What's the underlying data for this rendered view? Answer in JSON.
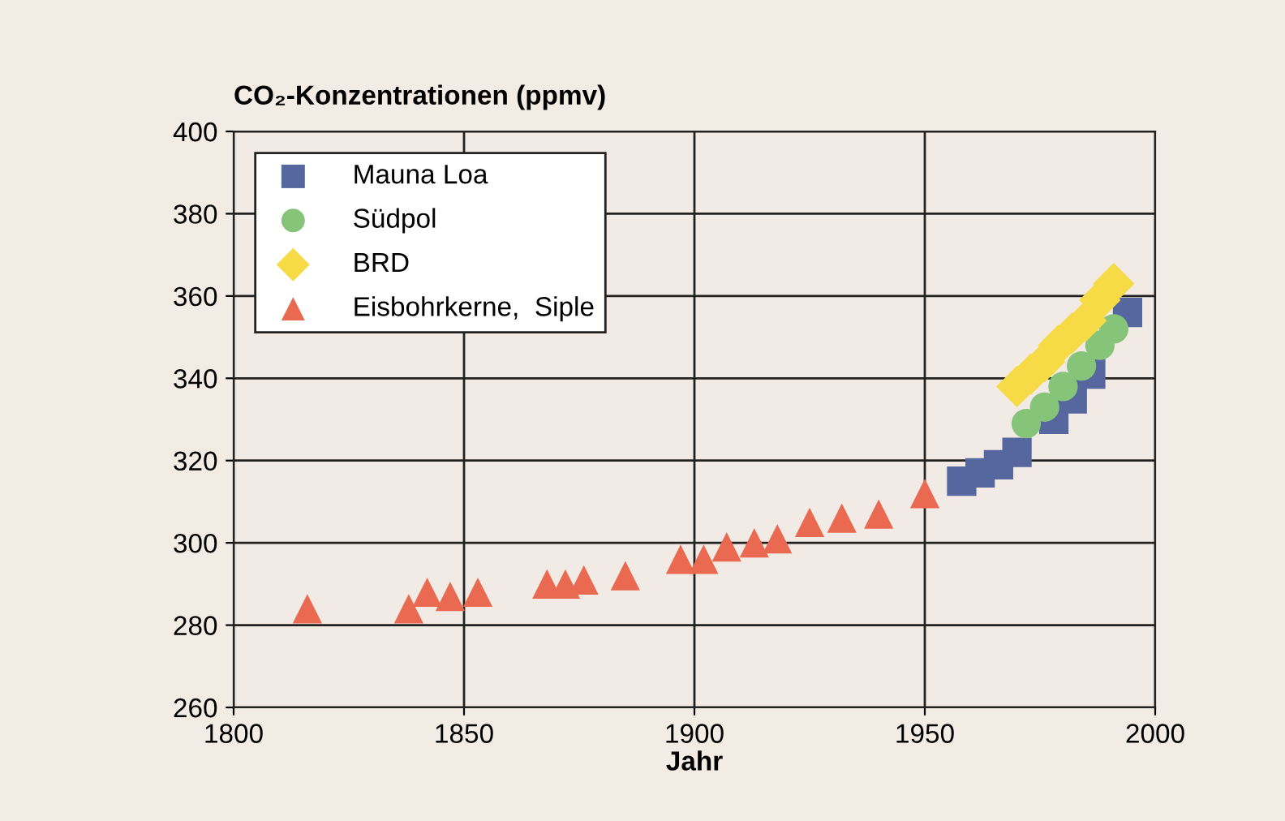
{
  "chart_data": {
    "type": "scatter",
    "title": "CO₂-Konzentrationen (ppmv)",
    "xlabel": "Jahr",
    "xlim": [
      1800,
      2000
    ],
    "xticks": [
      1800,
      1850,
      1900,
      1950,
      2000
    ],
    "ylim": [
      260,
      400
    ],
    "yticks": [
      260,
      280,
      300,
      320,
      340,
      360,
      380,
      400
    ],
    "grid": true,
    "legend": "top left",
    "series": [
      {
        "name": "Mauna Loa",
        "color": "#56679f",
        "marker": "square",
        "x": [
          1958,
          1962,
          1966,
          1970,
          1978,
          1982,
          1986,
          1994
        ],
        "values": [
          315,
          317,
          319,
          322,
          330,
          335,
          341,
          356
        ]
      },
      {
        "name": "Südpol",
        "color": "#86c47a",
        "marker": "circle",
        "x": [
          1972,
          1976,
          1980,
          1984,
          1988,
          1991
        ],
        "values": [
          329,
          333,
          338,
          343,
          348,
          352
        ]
      },
      {
        "name": "BRD",
        "color": "#f6db47",
        "marker": "diamond",
        "x": [
          1970,
          1973,
          1976,
          1979,
          1982,
          1985,
          1988,
          1991
        ],
        "values": [
          338,
          341,
          344,
          348,
          351,
          354,
          359,
          363
        ]
      },
      {
        "name": "Eisbohrkerne,  Siple",
        "color": "#e96a50",
        "marker": "triangle",
        "x": [
          1816,
          1838,
          1842,
          1847,
          1853,
          1868,
          1872,
          1876,
          1885,
          1897,
          1902,
          1907,
          1913,
          1918,
          1925,
          1932,
          1940,
          1950
        ],
        "values": [
          284,
          284,
          288,
          287,
          288,
          290,
          290,
          291,
          292,
          296,
          296,
          299,
          300,
          301,
          305,
          306,
          307,
          312
        ]
      }
    ]
  }
}
